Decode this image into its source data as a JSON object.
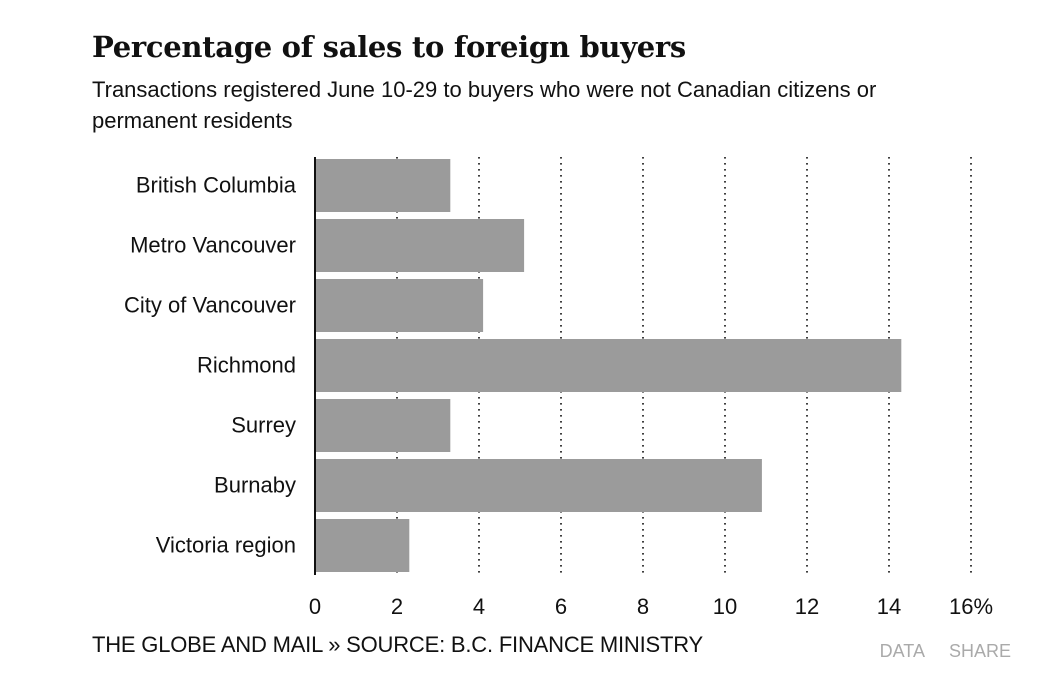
{
  "header": {
    "title": "Percentage of sales to foreign buyers",
    "subtitle": "Transactions registered June 10-29 to buyers who were not Canadian citizens or permanent residents"
  },
  "footer": {
    "credit": "THE GLOBE AND MAIL » SOURCE: B.C. FINANCE MINISTRY",
    "data_label": "DATA",
    "share_label": "SHARE"
  },
  "colors": {
    "bar": "#9b9b9b",
    "text": "#111111",
    "action": "#aaaaaa"
  },
  "chart_data": {
    "type": "bar",
    "orientation": "horizontal",
    "title": "Percentage of sales to foreign buyers",
    "subtitle": "Transactions registered June 10-29 to buyers who were not Canadian citizens or permanent residents",
    "categories": [
      "British Columbia",
      "Metro Vancouver",
      "City of Vancouver",
      "Richmond",
      "Surrey",
      "Burnaby",
      "Victoria region"
    ],
    "values": [
      3.3,
      5.1,
      4.1,
      14.3,
      3.3,
      10.9,
      2.3
    ],
    "xlim": [
      0,
      16
    ],
    "ticks": [
      0,
      2,
      4,
      6,
      8,
      10,
      12,
      14,
      16
    ],
    "tick_labels": [
      "0",
      "2",
      "4",
      "6",
      "8",
      "10",
      "12",
      "14",
      "16%"
    ],
    "grid": "vertical dotted",
    "xlabel": "",
    "ylabel": ""
  }
}
